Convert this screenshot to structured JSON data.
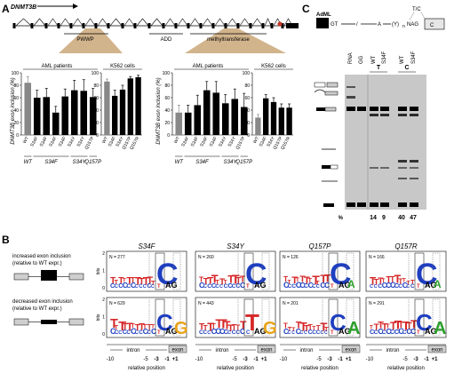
{
  "panel_labels": {
    "a": "A",
    "b": "B",
    "c": "C"
  },
  "panel_a": {
    "gene_label": "DNMT3B",
    "domains": [
      "PWWP",
      "ADD",
      "methyltransferase"
    ],
    "y_axis_title": "DNMT3B exon inclusion (%)",
    "y_ticks": [
      "0",
      "20",
      "40",
      "60",
      "80",
      "100"
    ],
    "x_groups": [
      "WT",
      "S34F",
      "S34Y",
      "Q157P"
    ],
    "x_groups_k562": [
      "WT",
      "S34F",
      "S34Y",
      "Q157P",
      "Q157R"
    ],
    "group_titles": {
      "aml": "AML patients",
      "k562": "K562 cells"
    }
  },
  "panel_b": {
    "legend_top": {
      "line1": "increased exon inclusion",
      "line2": "(relative to WT expr.)"
    },
    "legend_bottom": {
      "line1": "decreased exon inclusion",
      "line2": "(relative to WT expr.)"
    },
    "bits_label": "bits",
    "x_axis_title": "relative position",
    "x_tick_labels": [
      "-10",
      "-5",
      "-3",
      "-1",
      "+1"
    ],
    "region_labels": {
      "intron": "intron",
      "exon": "exon"
    },
    "motif_letters": "AG",
    "mutants": [
      {
        "name": "S34F",
        "n_up": "N = 277",
        "n_down": "N = 629"
      },
      {
        "name": "S34Y",
        "n_up": "N = 260",
        "n_down": "N = 443"
      },
      {
        "name": "Q157P",
        "n_up": "N = 126",
        "n_down": "N = 201"
      },
      {
        "name": "Q157R",
        "n_up": "N = 166",
        "n_down": "N = 291"
      }
    ]
  },
  "panel_c": {
    "construct": {
      "label": "AdML",
      "gt": "GT",
      "a": "A",
      "py": "(Y)",
      "py_sub": "n",
      "tc": "T/C",
      "nag": "NAG"
    },
    "lane_labels": [
      "RNA",
      "GG",
      "WT",
      "S34F",
      "WT",
      "S34F"
    ],
    "group_letters": [
      "T",
      "C"
    ],
    "percent_label": "%",
    "percent_values": [
      "14",
      "9",
      "40",
      "47"
    ]
  },
  "chart_data": [
    {
      "type": "bar",
      "title": "AML patients",
      "ylabel": "DNMT3B exon inclusion (%)",
      "ylim": [
        0,
        100
      ],
      "categories": [
        "WT",
        "S34F",
        "S34F",
        "S34F",
        "S34F",
        "S34Y",
        "S34Y",
        "Q157P"
      ],
      "values": [
        84,
        60,
        61,
        36,
        62,
        72,
        71,
        61
      ]
    },
    {
      "type": "bar",
      "title": "K562 cells",
      "ylim": [
        0,
        100
      ],
      "categories": [
        "WT",
        "S34F",
        "S34Y",
        "Q157P",
        "Q157R"
      ],
      "values": [
        86,
        63,
        73,
        91,
        93
      ]
    },
    {
      "type": "bar",
      "title": "AML patients",
      "ylim": [
        0,
        100
      ],
      "categories": [
        "WT",
        "S34F",
        "S34F",
        "S34F",
        "S34F",
        "S34Y",
        "S34Y",
        "Q157P"
      ],
      "values": [
        36,
        36,
        48,
        72,
        68,
        51,
        58,
        45
      ]
    },
    {
      "type": "bar",
      "title": "K562 cells",
      "ylim": [
        0,
        100
      ],
      "categories": [
        "WT",
        "S34F",
        "S34Y",
        "Q157P",
        "Q157R"
      ],
      "values": [
        28,
        59,
        53,
        44,
        44
      ]
    }
  ]
}
